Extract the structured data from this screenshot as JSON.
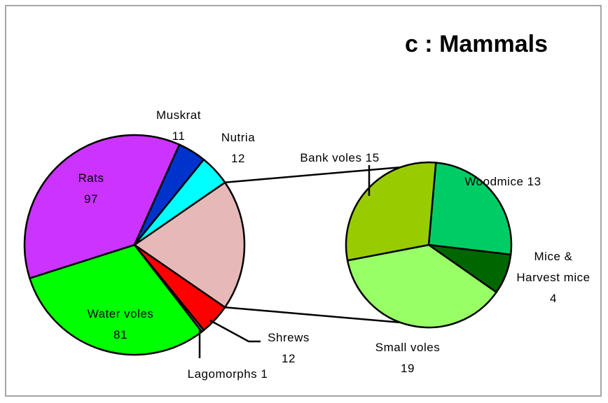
{
  "chart_data": {
    "type": "pie-of-pie",
    "title": "c : Mammals",
    "categories": [
      null,
      "Shrews",
      "Lagomorphs",
      "Water voles",
      "Rats",
      "Muskrat",
      "Nutria"
    ],
    "values": [
      51,
      12,
      1,
      81,
      97,
      11,
      12
    ],
    "colors": [
      "#e6b9b8",
      "#ff0000",
      "#808080",
      "#00ff00",
      "#cc33ff",
      "#0033cc",
      "#00ffff"
    ],
    "secondary": {
      "categories": [
        "Woodmice",
        "Mice & Harvest mice",
        "Small voles",
        "Bank voles"
      ],
      "values": [
        13,
        4,
        19,
        15
      ],
      "colors": [
        "#00cc66",
        "#006600",
        "#99ff66",
        "#99cc00"
      ]
    }
  }
}
